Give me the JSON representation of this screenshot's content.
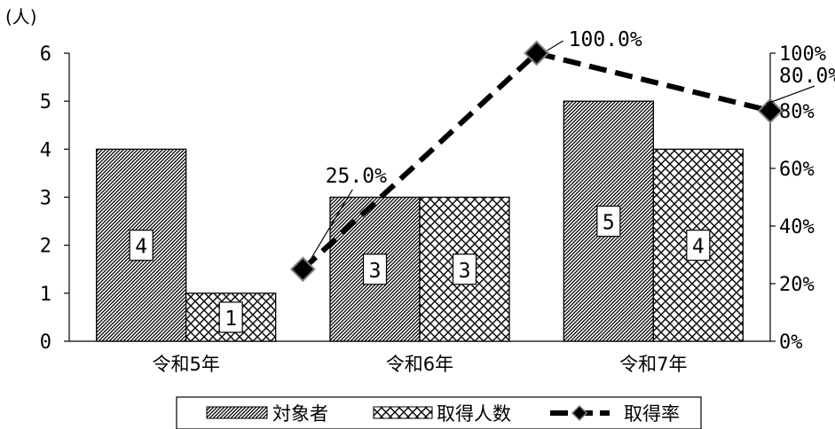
{
  "chart_data": {
    "type": "bar",
    "categories": [
      "令和5年",
      "令和6年",
      "令和7年"
    ],
    "left_axis": {
      "unit_label": "(人)",
      "ylim": [
        0,
        6
      ],
      "ticks": [
        "0",
        "1",
        "2",
        "3",
        "4",
        "5",
        "6"
      ]
    },
    "right_axis": {
      "ylim": [
        0,
        100
      ],
      "ticks": [
        "0%",
        "20%",
        "40%",
        "60%",
        "80%",
        "100%"
      ]
    },
    "series": [
      {
        "name": "対象者",
        "type": "bar",
        "axis": "left",
        "pattern": "diagonal-hatch",
        "values": [
          4,
          3,
          5
        ],
        "data_labels": [
          "4",
          "3",
          "5"
        ]
      },
      {
        "name": "取得人数",
        "type": "bar",
        "axis": "left",
        "pattern": "crosshatch",
        "values": [
          1,
          3,
          4
        ],
        "data_labels": [
          "1",
          "3",
          "4"
        ]
      },
      {
        "name": "取得率",
        "type": "line",
        "axis": "right",
        "line_style": "dashed",
        "marker": "diamond",
        "values": [
          25.0,
          100.0,
          80.0
        ],
        "data_labels": [
          "25.0%",
          "100.0%",
          "80.0%"
        ]
      }
    ],
    "legend": {
      "placement": "bottom",
      "entries": [
        "対象者",
        "取得人数",
        "取得率"
      ]
    },
    "grid": false,
    "colors": {
      "bar_stroke": "#000000",
      "line": "#000000",
      "marker_fill": "#000000",
      "marker_stroke": "#808080"
    }
  }
}
